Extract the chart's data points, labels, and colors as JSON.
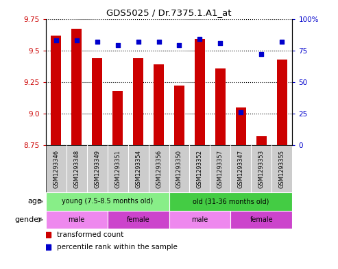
{
  "title": "GDS5025 / Dr.7375.1.A1_at",
  "samples": [
    "GSM1293346",
    "GSM1293348",
    "GSM1293349",
    "GSM1293351",
    "GSM1293354",
    "GSM1293356",
    "GSM1293350",
    "GSM1293352",
    "GSM1293357",
    "GSM1293347",
    "GSM1293353",
    "GSM1293355"
  ],
  "bar_values": [
    9.62,
    9.67,
    9.44,
    9.18,
    9.44,
    9.39,
    9.22,
    9.59,
    9.36,
    9.05,
    8.82,
    9.43
  ],
  "dot_values": [
    83,
    83,
    82,
    79,
    82,
    82,
    79,
    84,
    81,
    26,
    72,
    82
  ],
  "ylim_left": [
    8.75,
    9.75
  ],
  "ylim_right": [
    0,
    100
  ],
  "yticks_left": [
    8.75,
    9.0,
    9.25,
    9.5,
    9.75
  ],
  "yticks_right": [
    0,
    25,
    50,
    75,
    100
  ],
  "bar_color": "#cc0000",
  "dot_color": "#0000cc",
  "bar_width": 0.5,
  "age_groups": [
    {
      "label": "young (7.5-8.5 months old)",
      "start": 0,
      "end": 6,
      "color": "#88ee88"
    },
    {
      "label": "old (31-36 months old)",
      "start": 6,
      "end": 12,
      "color": "#44cc44"
    }
  ],
  "gender_groups": [
    {
      "label": "male",
      "start": 0,
      "end": 3,
      "color": "#ee88ee"
    },
    {
      "label": "female",
      "start": 3,
      "end": 6,
      "color": "#cc44cc"
    },
    {
      "label": "male",
      "start": 6,
      "end": 9,
      "color": "#ee88ee"
    },
    {
      "label": "female",
      "start": 9,
      "end": 12,
      "color": "#cc44cc"
    }
  ],
  "age_label": "age",
  "gender_label": "gender",
  "legend_red": "transformed count",
  "legend_blue": "percentile rank within the sample",
  "bg_color_plot": "#ffffff",
  "tick_bg_color": "#cccccc",
  "right_axis_color": "#0000cc",
  "left_axis_color": "#cc0000"
}
